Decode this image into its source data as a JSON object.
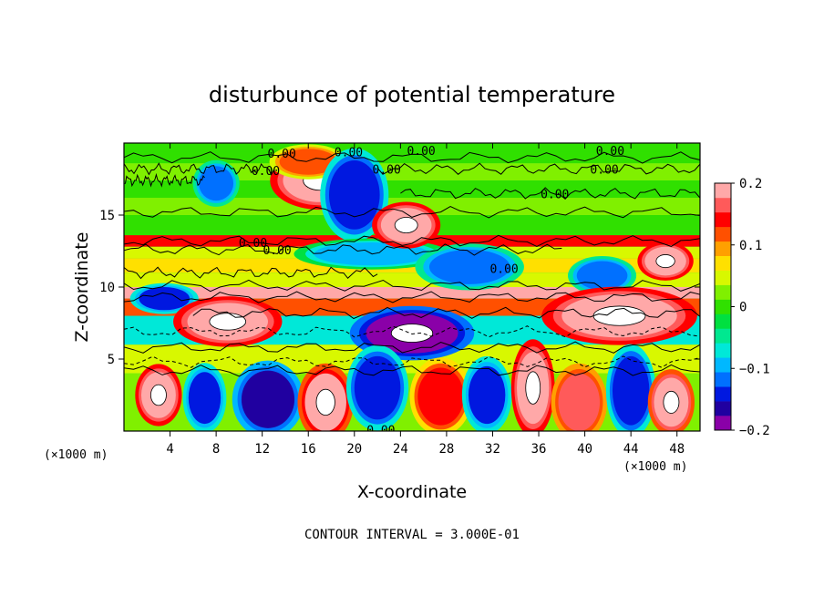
{
  "chart_data": {
    "type": "heatmap",
    "title": "disturbunce of potential temperature",
    "xlabel": "X-coordinate",
    "ylabel": "Z-coordinate",
    "x_unit_note": "(×1000 m)",
    "y_unit_note": "(×1000 m)",
    "xlim": [
      0,
      50
    ],
    "ylim": [
      0,
      20
    ],
    "x_ticks": [
      4,
      8,
      12,
      16,
      20,
      24,
      28,
      32,
      36,
      40,
      44,
      48
    ],
    "y_ticks": [
      5,
      10,
      15
    ],
    "colorbar": {
      "vmin": -0.2,
      "vmax": 0.2,
      "tick_values": [
        0.2,
        0.1,
        0,
        -0.1,
        -0.2
      ],
      "tick_labels": [
        "0.2",
        "0.1",
        "0",
        "−0.1",
        "−0.2"
      ],
      "colors": [
        "#8a00a8",
        "#2000a0",
        "#0018e0",
        "#0070ff",
        "#00b8ff",
        "#00e8d8",
        "#00e890",
        "#00e040",
        "#30e000",
        "#80f000",
        "#d8f800",
        "#ffe000",
        "#ffa000",
        "#ff5000",
        "#ff0000",
        "#ff5a5a",
        "#ffa8a8"
      ]
    },
    "contour_interval_text": "CONTOUR INTERVAL = 3.000E-01",
    "contour_labels": [
      {
        "text": "0.00",
        "x": 13.7,
        "z": 19.3
      },
      {
        "text": "0.00",
        "x": 19.5,
        "z": 19.4
      },
      {
        "text": "0.00",
        "x": 25.8,
        "z": 19.5
      },
      {
        "text": "0.00",
        "x": 42.2,
        "z": 19.5
      },
      {
        "text": "0.00",
        "x": 12.3,
        "z": 18.1
      },
      {
        "text": "0.00",
        "x": 22.8,
        "z": 18.2
      },
      {
        "text": "0.00",
        "x": 41.7,
        "z": 18.2
      },
      {
        "text": "0.00",
        "x": 37.4,
        "z": 16.5
      },
      {
        "text": "0.00",
        "x": 11.2,
        "z": 13.1
      },
      {
        "text": "0.00",
        "x": 13.3,
        "z": 12.6
      },
      {
        "text": "0.00",
        "x": 33.0,
        "z": 11.3
      },
      {
        "text": "0.00",
        "x": 22.3,
        "z": 0.1
      }
    ],
    "bands": [
      {
        "z0": 19.4,
        "z1": 20.0,
        "value": 0.0
      },
      {
        "z0": 18.6,
        "z1": 19.4,
        "value": 0.0
      },
      {
        "z0": 17.4,
        "z1": 18.6,
        "value": 0.02
      },
      {
        "z0": 16.2,
        "z1": 17.4,
        "value": 0.0
      },
      {
        "z0": 15.0,
        "z1": 16.2,
        "value": 0.03
      },
      {
        "z0": 13.6,
        "z1": 15.0,
        "value": 0.0
      },
      {
        "z0": 12.8,
        "z1": 13.6,
        "value": 0.15
      },
      {
        "z0": 12.0,
        "z1": 12.8,
        "value": 0.05
      },
      {
        "z0": 11.0,
        "z1": 12.0,
        "value": 0.08
      },
      {
        "z0": 10.0,
        "z1": 11.0,
        "value": 0.04
      },
      {
        "z0": 9.2,
        "z1": 10.0,
        "value": 0.2
      },
      {
        "z0": 8.0,
        "z1": 9.2,
        "value": 0.12
      },
      {
        "z0": 6.0,
        "z1": 8.0,
        "value": -0.06
      },
      {
        "z0": 4.0,
        "z1": 6.0,
        "value": 0.04
      },
      {
        "z0": 0.0,
        "z1": 4.0,
        "value": 0.02
      }
    ],
    "blobs": [
      {
        "x": 17.0,
        "z": 17.4,
        "rx": 3.2,
        "rz": 1.5,
        "value": 0.2
      },
      {
        "x": 16.0,
        "z": 18.7,
        "rx": 2.5,
        "rz": 0.9,
        "value": 0.12
      },
      {
        "x": 8.0,
        "z": 17.2,
        "rx": 1.5,
        "rz": 1.2,
        "value": -0.12
      },
      {
        "x": 20.0,
        "z": 16.4,
        "rx": 2.2,
        "rz": 2.4,
        "value": -0.15
      },
      {
        "x": 21.5,
        "z": 12.3,
        "rx": 5.0,
        "rz": 0.8,
        "value": -0.1
      },
      {
        "x": 24.5,
        "z": 14.3,
        "rx": 2.2,
        "rz": 1.2,
        "value": 0.2
      },
      {
        "x": 30.0,
        "z": 11.4,
        "rx": 3.5,
        "rz": 1.2,
        "value": -0.12
      },
      {
        "x": 41.5,
        "z": 10.8,
        "rx": 2.2,
        "rz": 1.0,
        "value": -0.12
      },
      {
        "x": 47.0,
        "z": 11.8,
        "rx": 1.8,
        "rz": 1.0,
        "value": 0.2
      },
      {
        "x": 3.5,
        "z": 9.2,
        "rx": 2.2,
        "rz": 0.8,
        "value": -0.14
      },
      {
        "x": 9.0,
        "z": 7.6,
        "rx": 3.5,
        "rz": 1.3,
        "value": 0.2
      },
      {
        "x": 25.0,
        "z": 6.8,
        "rx": 4.0,
        "rz": 1.4,
        "value": -0.18
      },
      {
        "x": 43.0,
        "z": 8.0,
        "rx": 5.0,
        "rz": 1.5,
        "value": 0.2
      },
      {
        "x": 3.0,
        "z": 2.5,
        "rx": 1.5,
        "rz": 1.6,
        "value": 0.2
      },
      {
        "x": 7.0,
        "z": 2.3,
        "rx": 1.4,
        "rz": 1.8,
        "value": -0.13
      },
      {
        "x": 12.5,
        "z": 2.2,
        "rx": 2.3,
        "rz": 2.0,
        "value": -0.16
      },
      {
        "x": 17.5,
        "z": 2.0,
        "rx": 1.8,
        "rz": 2.0,
        "value": 0.18
      },
      {
        "x": 22.0,
        "z": 3.0,
        "rx": 2.0,
        "rz": 2.2,
        "value": -0.15
      },
      {
        "x": 27.5,
        "z": 2.4,
        "rx": 2.0,
        "rz": 2.0,
        "value": 0.15
      },
      {
        "x": 31.5,
        "z": 2.5,
        "rx": 1.6,
        "rz": 2.0,
        "value": -0.13
      },
      {
        "x": 35.5,
        "z": 3.0,
        "rx": 1.4,
        "rz": 2.5,
        "value": 0.2
      },
      {
        "x": 39.5,
        "z": 2.0,
        "rx": 1.8,
        "rz": 2.0,
        "value": 0.16
      },
      {
        "x": 44.0,
        "z": 2.8,
        "rx": 1.6,
        "rz": 2.4,
        "value": -0.15
      },
      {
        "x": 47.5,
        "z": 2.0,
        "rx": 1.5,
        "rz": 1.7,
        "value": 0.19
      }
    ],
    "contour_lines": [
      {
        "z": 19.0,
        "x0": 0,
        "x1": 50
      },
      {
        "z": 18.2,
        "x0": 0,
        "x1": 13
      },
      {
        "z": 18.2,
        "x0": 22,
        "x1": 50
      },
      {
        "z": 17.4,
        "x0": 0,
        "x1": 7
      },
      {
        "z": 16.5,
        "x0": 24,
        "x1": 50
      },
      {
        "z": 15.2,
        "x0": 0,
        "x1": 50
      },
      {
        "z": 13.2,
        "x0": 0,
        "x1": 50
      },
      {
        "z": 12.6,
        "x0": 0,
        "x1": 38
      },
      {
        "z": 11.0,
        "x0": 0,
        "x1": 22
      },
      {
        "z": 10.1,
        "x0": 0,
        "x1": 50
      },
      {
        "z": 9.3,
        "x0": 0,
        "x1": 50
      },
      {
        "z": 8.2,
        "x0": 6,
        "x1": 50
      },
      {
        "z": 6.9,
        "x0": 0,
        "x1": 50
      },
      {
        "z": 5.8,
        "x0": 0,
        "x1": 50
      },
      {
        "z": 4.8,
        "x0": 0,
        "x1": 50
      },
      {
        "z": 4.2,
        "x0": 0,
        "x1": 50
      }
    ]
  }
}
